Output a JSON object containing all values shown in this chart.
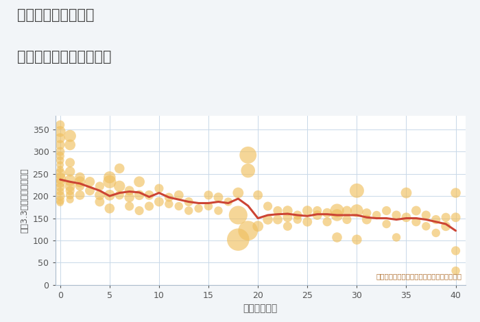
{
  "title_line1": "東京都練馬区向山の",
  "title_line2": "築年数別中古戸建て価格",
  "xlabel": "築年数（年）",
  "ylabel": "坪（3.3㎡）単価（万円）",
  "annotation": "円の大きさは、取引のあった物件面積を示す",
  "bg_color": "#f2f5f8",
  "plot_bg_color": "#ffffff",
  "bubble_color": "#f0c060",
  "bubble_alpha": 0.65,
  "bubble_edge_color": "none",
  "line_color": "#cc4433",
  "line_width": 2.2,
  "xlim": [
    -0.5,
    41
  ],
  "ylim": [
    0,
    380
  ],
  "yticks": [
    0,
    50,
    100,
    150,
    200,
    250,
    300,
    350
  ],
  "xticks": [
    0,
    5,
    10,
    15,
    20,
    25,
    30,
    35,
    40
  ],
  "scatter_x": [
    0,
    0,
    0,
    0,
    0,
    0,
    0,
    0,
    0,
    0,
    0,
    0,
    0,
    0,
    0,
    0,
    0,
    1,
    1,
    1,
    1,
    1,
    1,
    1,
    1,
    1,
    2,
    2,
    2,
    2,
    3,
    3,
    4,
    4,
    4,
    5,
    5,
    5,
    5,
    6,
    6,
    6,
    7,
    7,
    7,
    8,
    8,
    8,
    9,
    9,
    10,
    10,
    11,
    11,
    12,
    12,
    13,
    13,
    14,
    15,
    15,
    16,
    16,
    17,
    18,
    18,
    18,
    19,
    19,
    19,
    20,
    20,
    21,
    21,
    22,
    22,
    23,
    23,
    23,
    24,
    24,
    25,
    25,
    26,
    26,
    27,
    27,
    28,
    28,
    28,
    29,
    29,
    30,
    30,
    30,
    31,
    31,
    32,
    33,
    33,
    34,
    34,
    35,
    35,
    36,
    36,
    37,
    37,
    38,
    38,
    39,
    39,
    40,
    40,
    40,
    40
  ],
  "scatter_y": [
    360,
    345,
    330,
    315,
    300,
    290,
    280,
    270,
    260,
    250,
    240,
    230,
    220,
    210,
    200,
    190,
    185,
    335,
    315,
    275,
    255,
    235,
    222,
    212,
    202,
    192,
    242,
    232,
    222,
    202,
    232,
    212,
    222,
    202,
    187,
    242,
    232,
    202,
    172,
    262,
    222,
    202,
    212,
    197,
    177,
    232,
    202,
    167,
    202,
    177,
    217,
    187,
    197,
    182,
    202,
    177,
    187,
    167,
    172,
    202,
    177,
    197,
    167,
    187,
    207,
    157,
    102,
    292,
    257,
    122,
    202,
    132,
    177,
    147,
    167,
    147,
    167,
    152,
    132,
    157,
    147,
    167,
    142,
    167,
    157,
    162,
    142,
    167,
    157,
    107,
    167,
    147,
    212,
    167,
    102,
    162,
    147,
    157,
    167,
    137,
    157,
    107,
    207,
    152,
    167,
    142,
    157,
    132,
    147,
    117,
    152,
    132,
    207,
    152,
    77,
    32
  ],
  "scatter_size": [
    90,
    130,
    110,
    100,
    90,
    80,
    70,
    60,
    55,
    130,
    140,
    110,
    90,
    70,
    100,
    80,
    60,
    160,
    130,
    100,
    110,
    140,
    120,
    90,
    80,
    65,
    110,
    130,
    90,
    100,
    110,
    100,
    90,
    110,
    100,
    160,
    190,
    130,
    110,
    110,
    140,
    90,
    100,
    110,
    90,
    130,
    110,
    90,
    100,
    90,
    90,
    100,
    90,
    80,
    100,
    80,
    90,
    80,
    80,
    90,
    80,
    100,
    80,
    80,
    130,
    380,
    550,
    320,
    220,
    430,
    100,
    130,
    90,
    110,
    90,
    100,
    110,
    100,
    90,
    90,
    80,
    110,
    100,
    90,
    100,
    100,
    90,
    210,
    160,
    110,
    100,
    90,
    230,
    180,
    110,
    90,
    100,
    80,
    90,
    80,
    90,
    80,
    130,
    100,
    100,
    90,
    90,
    80,
    90,
    80,
    90,
    100,
    110,
    100,
    90,
    80
  ],
  "line_x": [
    0,
    1,
    2,
    3,
    4,
    5,
    6,
    7,
    8,
    9,
    10,
    11,
    12,
    13,
    14,
    15,
    16,
    17,
    18,
    19,
    20,
    21,
    22,
    23,
    24,
    25,
    26,
    27,
    28,
    29,
    30,
    31,
    32,
    33,
    34,
    35,
    36,
    37,
    38,
    39,
    40
  ],
  "line_y": [
    237,
    232,
    228,
    220,
    212,
    200,
    207,
    210,
    208,
    198,
    207,
    197,
    192,
    187,
    184,
    184,
    187,
    184,
    194,
    178,
    150,
    157,
    159,
    160,
    157,
    155,
    159,
    159,
    157,
    157,
    157,
    152,
    150,
    150,
    147,
    150,
    150,
    147,
    142,
    137,
    122
  ]
}
